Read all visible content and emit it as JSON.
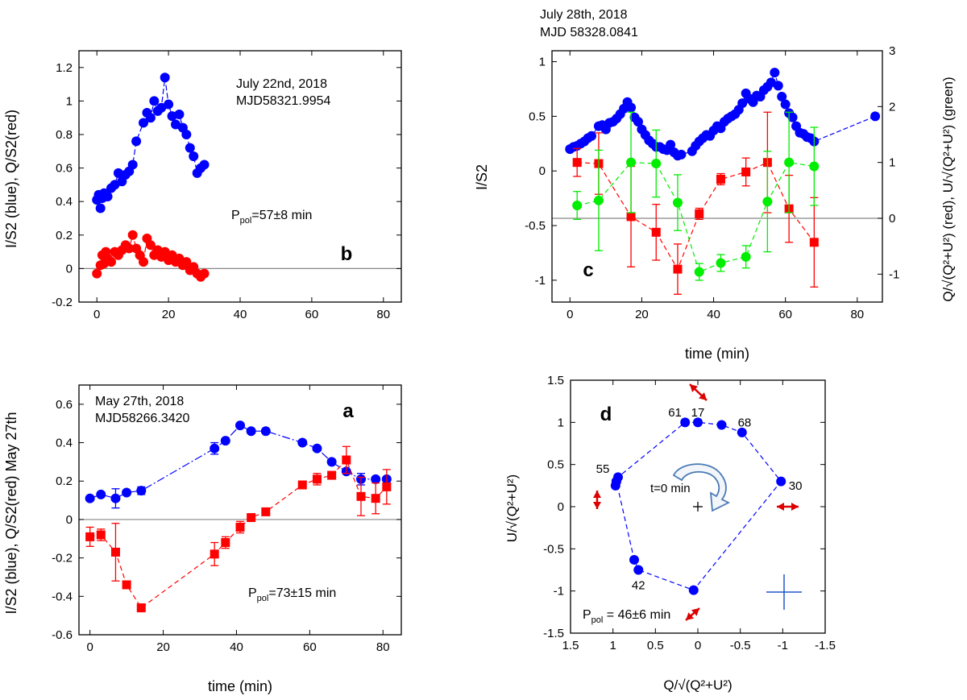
{
  "colors": {
    "blue": "#0000ff",
    "red": "#ff0000",
    "green": "#00ee00",
    "zero_line": "#888888",
    "cross": "#2255cc",
    "arrow": "#dd0000"
  },
  "chart_data": [
    {
      "id": "b",
      "type": "scatter",
      "panel_label": "b",
      "annotation": [
        "July 22nd, 2018",
        "MJD58321.9954"
      ],
      "ppol": {
        "main": "P",
        "sub": "pol",
        "rest": "=57±8 min"
      },
      "xlabel": "",
      "ylabel": "I/S2 (blue), Q/S2(red)",
      "xlim": [
        -5,
        85
      ],
      "ylim": [
        -0.2,
        1.3
      ],
      "xticks": [
        0,
        20,
        40,
        60,
        80
      ],
      "yticks": [
        -0.2,
        0,
        0.2,
        0.4,
        0.6,
        0.8,
        1.0,
        1.2
      ],
      "series": [
        {
          "name": "I/S2",
          "color": "blue",
          "marker": "circle",
          "x": [
            0,
            0.5,
            1,
            1.5,
            2,
            3,
            4,
            5,
            6,
            7,
            8,
            9,
            10,
            11,
            13,
            14,
            15,
            16,
            17,
            18,
            19,
            20,
            21,
            22,
            23,
            24,
            25,
            26,
            27,
            28,
            29,
            30
          ],
          "y": [
            0.41,
            0.44,
            0.36,
            0.42,
            0.45,
            0.43,
            0.48,
            0.5,
            0.57,
            0.52,
            0.56,
            0.58,
            0.62,
            0.76,
            0.87,
            0.93,
            0.9,
            1.0,
            0.94,
            0.96,
            1.14,
            0.98,
            0.91,
            0.86,
            0.92,
            0.84,
            0.8,
            0.72,
            0.67,
            0.57,
            0.6,
            0.62
          ]
        },
        {
          "name": "Q/S2",
          "color": "red",
          "marker": "circle",
          "x": [
            0,
            1,
            1.5,
            2,
            2.5,
            3,
            4,
            5,
            6,
            7,
            8,
            9,
            10,
            11,
            12,
            13,
            14,
            15,
            16,
            17,
            18,
            19,
            20,
            21,
            22,
            23,
            24,
            25,
            26,
            27,
            28,
            29,
            30
          ],
          "y": [
            -0.03,
            0.02,
            0.08,
            0.03,
            0.1,
            0.06,
            0.04,
            0.1,
            0.08,
            0.11,
            0.14,
            0.12,
            0.2,
            0.12,
            0.08,
            0.04,
            0.18,
            0.14,
            0.08,
            0.11,
            0.07,
            0.1,
            0.05,
            0.08,
            0.04,
            0.06,
            0.02,
            0.04,
            -0.01,
            0.01,
            -0.03,
            -0.05,
            -0.03
          ]
        }
      ]
    },
    {
      "id": "c",
      "type": "scatter",
      "panel_label": "c",
      "annotation": [
        "July 28th, 2018",
        "MJD 58328.0841"
      ],
      "xlabel": "time (min)",
      "ylabel": "I/S2",
      "ylabel_right": "Q/√(Q²+U²) (red), U/√(Q²+U²) (green)",
      "xlim": [
        -5,
        87
      ],
      "ylim": [
        -1.2,
        1.1
      ],
      "ylim_right": [
        -1.5,
        3.0
      ],
      "xticks": [
        0,
        20,
        40,
        60,
        80
      ],
      "yticks": [
        -1.0,
        -0.5,
        0,
        0.5,
        1.0
      ],
      "yticks_right": [
        -1,
        0,
        1,
        2,
        3
      ],
      "hline_right": 0,
      "series": [
        {
          "name": "I/S2",
          "color": "blue",
          "marker": "circle",
          "x": [
            0,
            1,
            2,
            3,
            4,
            5,
            6,
            8,
            9,
            10,
            11,
            12,
            13,
            14,
            15,
            16,
            17,
            18,
            19,
            20,
            21,
            22,
            23,
            24,
            25,
            26,
            27,
            28,
            29,
            30,
            31,
            34,
            35,
            36,
            37,
            38,
            39,
            40,
            41,
            42,
            43,
            44,
            45,
            46,
            47,
            48,
            49,
            50,
            51,
            52,
            53,
            54,
            55,
            56,
            57,
            58,
            59,
            60,
            61,
            62,
            63,
            64,
            65,
            66,
            67,
            68,
            85
          ],
          "y": [
            0.2,
            0.22,
            0.23,
            0.25,
            0.27,
            0.3,
            0.32,
            0.41,
            0.42,
            0.38,
            0.44,
            0.45,
            0.48,
            0.52,
            0.57,
            0.63,
            0.58,
            0.49,
            0.45,
            0.38,
            0.33,
            0.28,
            0.25,
            0.22,
            0.22,
            0.2,
            0.19,
            0.24,
            0.17,
            0.14,
            0.15,
            0.18,
            0.23,
            0.27,
            0.3,
            0.33,
            0.32,
            0.37,
            0.41,
            0.39,
            0.45,
            0.48,
            0.5,
            0.52,
            0.56,
            0.62,
            0.71,
            0.66,
            0.63,
            0.69,
            0.68,
            0.74,
            0.77,
            0.81,
            0.9,
            0.78,
            0.68,
            0.61,
            0.53,
            0.49,
            0.41,
            0.35,
            0.34,
            0.31,
            0.3,
            0.27,
            0.5
          ]
        },
        {
          "name": "Q/√(Q²+U²)",
          "color": "red",
          "marker": "square",
          "axis": "right",
          "x": [
            2,
            8,
            17,
            24,
            30,
            36,
            42,
            49,
            55,
            61,
            68
          ],
          "y": [
            1.0,
            0.98,
            0.03,
            -0.25,
            -0.91,
            0.08,
            0.7,
            0.83,
            1.0,
            0.17,
            -0.43
          ],
          "err": [
            0.25,
            0.55,
            0.9,
            0.5,
            0.45,
            0.1,
            0.1,
            0.25,
            0.9,
            0.6,
            0.8
          ]
        },
        {
          "name": "U/√(Q²+U²)",
          "color": "green",
          "marker": "circle",
          "axis": "right",
          "x": [
            2,
            8,
            17,
            24,
            30,
            36,
            42,
            49,
            55,
            61,
            68
          ],
          "y": [
            0.23,
            0.32,
            1.0,
            0.98,
            0.28,
            -0.96,
            -0.8,
            -0.69,
            0.3,
            1.0,
            0.93
          ],
          "err": [
            0.25,
            0.9,
            0.9,
            0.6,
            0.5,
            0.15,
            0.15,
            0.2,
            0.9,
            0.9,
            0.7
          ]
        }
      ]
    },
    {
      "id": "a",
      "type": "scatter",
      "panel_label": "a",
      "annotation": [
        "May 27th, 2018",
        "MJD58266.3420"
      ],
      "ppol": {
        "main": "P",
        "sub": "pol",
        "rest": "=73±15 min"
      },
      "xlabel": "time (min)",
      "ylabel": "I/S2 (blue), Q/S2(red) May 27th",
      "xlim": [
        -3,
        85
      ],
      "ylim": [
        -0.6,
        0.7
      ],
      "xticks": [
        0,
        20,
        40,
        60,
        80
      ],
      "yticks": [
        -0.6,
        -0.4,
        -0.2,
        0,
        0.2,
        0.4,
        0.6
      ],
      "series": [
        {
          "name": "I/S2",
          "color": "blue",
          "marker": "circle",
          "x": [
            0,
            3,
            7,
            10,
            14,
            34,
            37,
            41,
            44,
            48,
            58,
            62,
            66,
            70,
            74,
            78,
            81
          ],
          "y": [
            0.11,
            0.13,
            0.11,
            0.14,
            0.15,
            0.37,
            0.41,
            0.49,
            0.46,
            0.46,
            0.4,
            0.37,
            0.3,
            0.25,
            0.21,
            0.21,
            0.21
          ],
          "err": [
            0,
            0,
            0.05,
            0,
            0.02,
            0.03,
            0,
            0,
            0,
            0,
            0,
            0,
            0,
            0,
            0.03,
            0,
            0
          ]
        },
        {
          "name": "Q/S2",
          "color": "red",
          "marker": "square",
          "x": [
            0,
            3,
            7,
            10,
            14,
            34,
            37,
            41,
            44,
            48,
            58,
            62,
            66,
            70,
            74,
            78,
            81
          ],
          "y": [
            -0.09,
            -0.08,
            -0.17,
            -0.34,
            -0.46,
            -0.18,
            -0.12,
            -0.04,
            0.01,
            0.04,
            0.18,
            0.21,
            0.23,
            0.31,
            0.12,
            0.11,
            0.17
          ],
          "err": [
            0.05,
            0.03,
            0.15,
            0,
            0.02,
            0.06,
            0.03,
            0.03,
            0,
            0,
            0.02,
            0.03,
            0,
            0.07,
            0.1,
            0.08,
            0.09
          ]
        }
      ]
    },
    {
      "id": "d",
      "type": "scatter",
      "panel_label": "d",
      "ppol": {
        "main": "P",
        "sub": "pol",
        "rest": " = 46±6 min"
      },
      "xlabel": "Q/√(Q²+U²)",
      "ylabel": "U/√(Q²+U²)",
      "xlim": [
        1.5,
        -1.5
      ],
      "ylim": [
        -1.5,
        1.5
      ],
      "xticks": [
        1.5,
        1.0,
        0.5,
        0,
        -0.5,
        -1.0,
        -1.5
      ],
      "yticks": [
        -1.5,
        -1.0,
        -0.5,
        0,
        0.5,
        1.0,
        1.5
      ],
      "start_label": "t=0 min",
      "points": {
        "x": [
          0.97,
          0.96,
          0.75,
          0.7,
          0.05,
          -0.98,
          -0.52,
          -0.28,
          0.0,
          0.15,
          0.94,
          0.96
        ],
        "y": [
          0.25,
          0.3,
          -0.63,
          -0.75,
          -0.99,
          0.3,
          0.88,
          0.97,
          1.0,
          1.0,
          0.35,
          0.3
        ]
      },
      "point_labels": [
        {
          "text": "61",
          "x": 0.27,
          "y": 1.12
        },
        {
          "text": "17",
          "x": 0.0,
          "y": 1.12
        },
        {
          "text": "68",
          "x": -0.55,
          "y": 1.0
        },
        {
          "text": "55",
          "x": 1.12,
          "y": 0.45
        },
        {
          "text": "30",
          "x": -1.15,
          "y": 0.25
        },
        {
          "text": "42",
          "x": 0.7,
          "y": -0.93
        }
      ]
    }
  ]
}
